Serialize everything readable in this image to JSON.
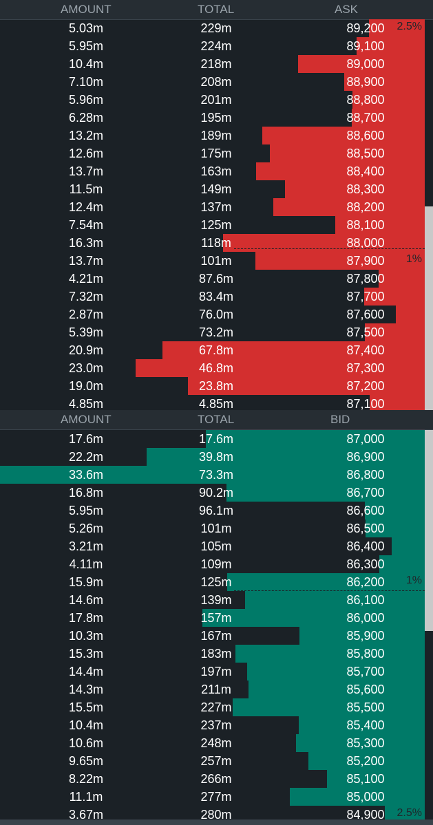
{
  "colors": {
    "ask_bar": "#d32f2f",
    "bid_bar": "#007a68",
    "background": "#1b2126",
    "header_bg": "#262d33"
  },
  "ask_header": {
    "amount": "AMOUNT",
    "total": "TOTAL",
    "price": "ASK"
  },
  "bid_header": {
    "amount": "AMOUNT",
    "total": "TOTAL",
    "price": "BID"
  },
  "ask_rows": [
    {
      "amount": "5.03m",
      "total": "229m",
      "price": "89,200",
      "pct": "2.5%"
    },
    {
      "amount": "5.95m",
      "total": "224m",
      "price": "89,100"
    },
    {
      "amount": "10.4m",
      "total": "218m",
      "price": "89,000"
    },
    {
      "amount": "7.10m",
      "total": "208m",
      "price": "88,900"
    },
    {
      "amount": "5.96m",
      "total": "201m",
      "price": "88,800"
    },
    {
      "amount": "6.28m",
      "total": "195m",
      "price": "88,700"
    },
    {
      "amount": "13.2m",
      "total": "189m",
      "price": "88,600"
    },
    {
      "amount": "12.6m",
      "total": "175m",
      "price": "88,500"
    },
    {
      "amount": "13.7m",
      "total": "163m",
      "price": "88,400"
    },
    {
      "amount": "11.5m",
      "total": "149m",
      "price": "88,300"
    },
    {
      "amount": "12.4m",
      "total": "137m",
      "price": "88,200"
    },
    {
      "amount": "7.54m",
      "total": "125m",
      "price": "88,100"
    },
    {
      "amount": "16.3m",
      "total": "118m",
      "price": "88,000"
    },
    {
      "amount": "13.7m",
      "total": "101m",
      "price": "87,900",
      "pct": "1%"
    },
    {
      "amount": "4.21m",
      "total": "87.6m",
      "price": "87,800"
    },
    {
      "amount": "7.32m",
      "total": "83.4m",
      "price": "87,700"
    },
    {
      "amount": "2.87m",
      "total": "76.0m",
      "price": "87,600"
    },
    {
      "amount": "5.39m",
      "total": "73.2m",
      "price": "87,500"
    },
    {
      "amount": "20.9m",
      "total": "67.8m",
      "price": "87,400"
    },
    {
      "amount": "23.0m",
      "total": "46.8m",
      "price": "87,300"
    },
    {
      "amount": "19.0m",
      "total": "23.8m",
      "price": "87,200"
    },
    {
      "amount": "4.85m",
      "total": "4.85m",
      "price": "87,100"
    }
  ],
  "bid_rows": [
    {
      "amount": "17.6m",
      "total": "17.6m",
      "price": "87,000"
    },
    {
      "amount": "22.2m",
      "total": "39.8m",
      "price": "86,900"
    },
    {
      "amount": "33.6m",
      "total": "73.3m",
      "price": "86,800"
    },
    {
      "amount": "16.8m",
      "total": "90.2m",
      "price": "86,700"
    },
    {
      "amount": "5.95m",
      "total": "96.1m",
      "price": "86,600"
    },
    {
      "amount": "5.26m",
      "total": "101m",
      "price": "86,500"
    },
    {
      "amount": "3.21m",
      "total": "105m",
      "price": "86,400"
    },
    {
      "amount": "4.11m",
      "total": "109m",
      "price": "86,300"
    },
    {
      "amount": "15.9m",
      "total": "125m",
      "price": "86,200",
      "pct": "1%"
    },
    {
      "amount": "14.6m",
      "total": "139m",
      "price": "86,100"
    },
    {
      "amount": "17.8m",
      "total": "157m",
      "price": "86,000"
    },
    {
      "amount": "10.3m",
      "total": "167m",
      "price": "85,900"
    },
    {
      "amount": "15.3m",
      "total": "183m",
      "price": "85,800"
    },
    {
      "amount": "14.4m",
      "total": "197m",
      "price": "85,700"
    },
    {
      "amount": "14.3m",
      "total": "211m",
      "price": "85,600"
    },
    {
      "amount": "15.5m",
      "total": "227m",
      "price": "85,500"
    },
    {
      "amount": "10.4m",
      "total": "237m",
      "price": "85,400"
    },
    {
      "amount": "10.6m",
      "total": "248m",
      "price": "85,300"
    },
    {
      "amount": "9.65m",
      "total": "257m",
      "price": "85,200"
    },
    {
      "amount": "8.22m",
      "total": "266m",
      "price": "85,100"
    },
    {
      "amount": "11.1m",
      "total": "277m",
      "price": "85,000"
    },
    {
      "amount": "3.67m",
      "total": "280m",
      "price": "84,900",
      "pct": "2.5%"
    }
  ]
}
